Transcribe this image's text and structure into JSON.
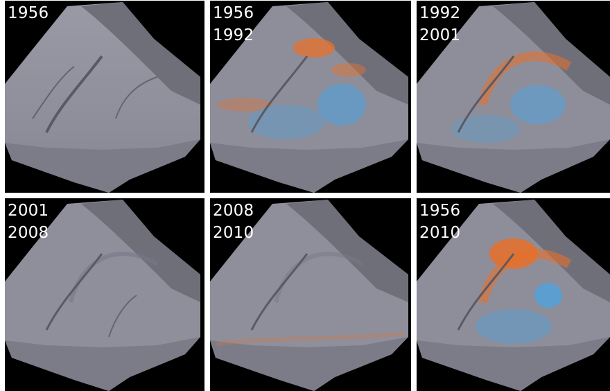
{
  "panels": [
    {
      "id": "p1",
      "lines": [
        "1956",
        ""
      ],
      "change": "none"
    },
    {
      "id": "p2",
      "lines": [
        "1956",
        "1992"
      ],
      "change": "moderate"
    },
    {
      "id": "p3",
      "lines": [
        "1992",
        "2001"
      ],
      "change": "arc"
    },
    {
      "id": "p4",
      "lines": [
        "2001",
        "2008"
      ],
      "change": "faint"
    },
    {
      "id": "p5",
      "lines": [
        "2008",
        "2010"
      ],
      "change": "faint-lower"
    },
    {
      "id": "p6",
      "lines": [
        "1956",
        "2010"
      ],
      "change": "strong"
    }
  ],
  "colors": {
    "background": "#000000",
    "terrain": "#8e8e9a",
    "terrain_dark": "#6f6f7a",
    "terrain_shade": "#5a5a64",
    "deposition": "#e8702a",
    "erosion": "#4aa3e0",
    "label": "#ffffff"
  }
}
